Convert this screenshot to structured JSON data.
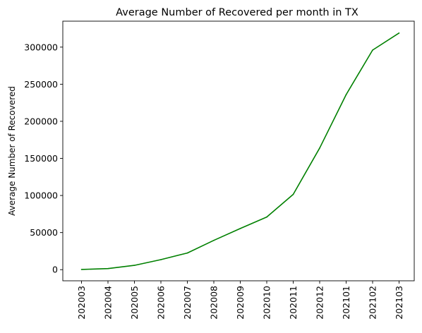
{
  "chart_data": {
    "type": "line",
    "title": "Average Number of Recovered per month in TX",
    "xlabel": "",
    "ylabel": "Average Number of Recovered",
    "categories": [
      "202003",
      "202004",
      "202005",
      "202006",
      "202007",
      "202008",
      "202009",
      "202010",
      "202011",
      "202012",
      "202101",
      "202102",
      "202103"
    ],
    "series": [
      {
        "values": [
          300,
          1500,
          5800,
          13500,
          22500,
          39500,
          55500,
          71000,
          101500,
          164000,
          236000,
          296000,
          319000
        ],
        "color": "#008000"
      }
    ],
    "ylim": [
      -15000,
      335000
    ],
    "yticks": [
      0,
      50000,
      100000,
      150000,
      200000,
      250000,
      300000
    ],
    "grid": false,
    "legend": "none"
  }
}
